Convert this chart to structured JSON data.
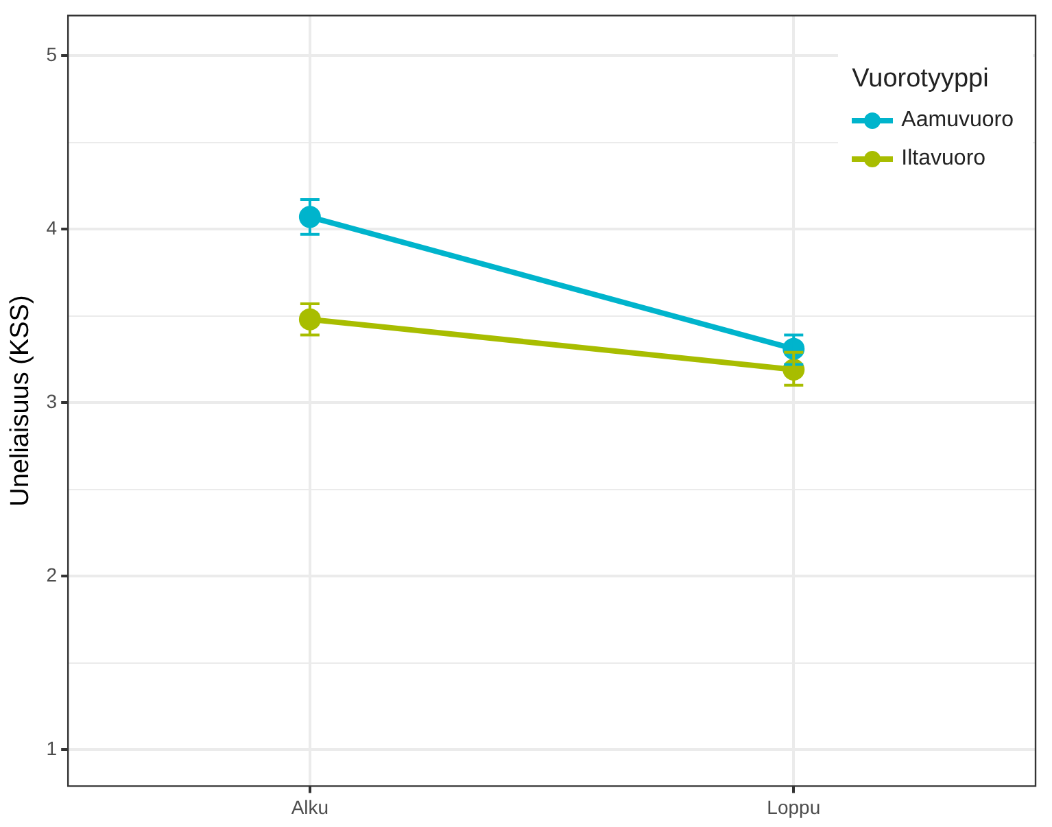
{
  "chart_data": {
    "type": "line",
    "ylabel": "Uneliaisuus (KSS)",
    "legend_title": "Vuorotyyppi",
    "categories": [
      "Alku",
      "Loppu"
    ],
    "series": [
      {
        "name": "Aamuvuoro",
        "color": "#00b4cc",
        "values": [
          4.07,
          3.31
        ],
        "errors": [
          [
            3.97,
            4.17
          ],
          [
            3.22,
            3.39
          ]
        ]
      },
      {
        "name": "Iltavuoro",
        "color": "#a8bd00",
        "values": [
          3.48,
          3.19
        ],
        "errors": [
          [
            3.39,
            3.57
          ],
          [
            3.1,
            3.29
          ]
        ]
      }
    ],
    "ylim": [
      0.79,
      5.23
    ],
    "yticks": [
      1,
      {
        "value": 1.5,
        "label": null
      },
      2,
      {
        "value": 2.5,
        "label": null
      },
      3,
      {
        "value": 3.5,
        "label": null
      },
      4,
      {
        "value": 4.5,
        "label": null
      },
      5
    ],
    "grid": true,
    "legend": "top right",
    "marker": "circle",
    "line_style": "solid"
  }
}
